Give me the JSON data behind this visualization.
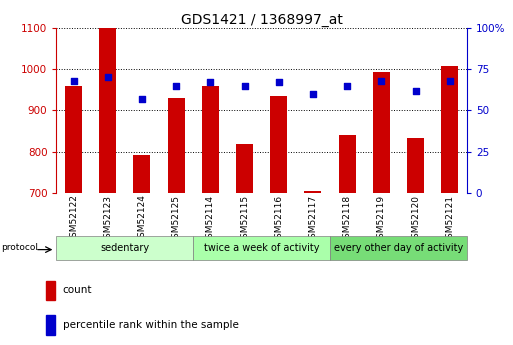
{
  "title": "GDS1421 / 1368997_at",
  "categories": [
    "GSM52122",
    "GSM52123",
    "GSM52124",
    "GSM52125",
    "GSM52114",
    "GSM52115",
    "GSM52116",
    "GSM52117",
    "GSM52118",
    "GSM52119",
    "GSM52120",
    "GSM52121"
  ],
  "count_values": [
    960,
    1100,
    793,
    930,
    960,
    820,
    935,
    706,
    840,
    993,
    833,
    1007
  ],
  "percentile_values": [
    68,
    70,
    57,
    65,
    67,
    65,
    67,
    60,
    65,
    68,
    62,
    68
  ],
  "ylim_left": [
    700,
    1100
  ],
  "ylim_right": [
    0,
    100
  ],
  "yticks_left": [
    700,
    800,
    900,
    1000,
    1100
  ],
  "yticks_right": [
    0,
    25,
    50,
    75,
    100
  ],
  "yticklabels_right": [
    "0",
    "25",
    "50",
    "75",
    "100%"
  ],
  "bar_color": "#cc0000",
  "dot_color": "#0000cc",
  "bg_color": "#ffffff",
  "protocol_groups": [
    {
      "label": "sedentary",
      "start": 0,
      "end": 4,
      "color": "#ccffcc"
    },
    {
      "label": "twice a week of activity",
      "start": 4,
      "end": 8,
      "color": "#aaffaa"
    },
    {
      "label": "every other day of activity",
      "start": 8,
      "end": 12,
      "color": "#77dd77"
    }
  ],
  "protocol_label": "protocol",
  "legend_items": [
    {
      "label": "count",
      "color": "#cc0000"
    },
    {
      "label": "percentile rank within the sample",
      "color": "#0000cc"
    }
  ],
  "left_label_color": "#cc0000",
  "right_label_color": "#0000cc",
  "bar_width": 0.5,
  "xlabel_fontsize": 6.5,
  "title_fontsize": 10,
  "tick_fontsize": 7.5,
  "legend_fontsize": 7.5,
  "protocol_fontsize": 7
}
